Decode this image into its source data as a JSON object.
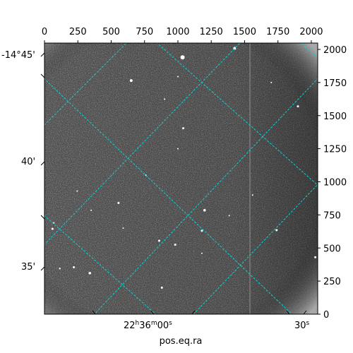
{
  "chart_data": {
    "type": "heatmap",
    "title": "",
    "xlabel": "pos.eq.ra",
    "ylabel": "",
    "pixel_axes": {
      "xlim": [
        0,
        2048
      ],
      "ylim": [
        0,
        2048
      ],
      "x_ticks": [
        "0",
        "250",
        "500",
        "750",
        "1000",
        "1250",
        "1500",
        "1750",
        "2000"
      ],
      "y_ticks": [
        "0",
        "250",
        "500",
        "750",
        "1000",
        "1250",
        "1500",
        "1750",
        "2000"
      ]
    },
    "world_axes": {
      "ra_ticks": [
        "22h36m00s",
        "30s"
      ],
      "dec_ticks": [
        "-14°45'",
        "40'",
        "35'"
      ]
    },
    "grid": true,
    "grid_color": "#00d8d8",
    "colormap": "gray",
    "stars": [
      {
        "x": 1035,
        "y": 1940,
        "r": 3
      },
      {
        "x": 1425,
        "y": 2008,
        "r": 2
      },
      {
        "x": 650,
        "y": 1765,
        "r": 2
      },
      {
        "x": 1000,
        "y": 1795,
        "r": 1
      },
      {
        "x": 1040,
        "y": 1405,
        "r": 1.5
      },
      {
        "x": 1900,
        "y": 1570,
        "r": 1.5
      },
      {
        "x": 900,
        "y": 1625,
        "r": 1
      },
      {
        "x": 1700,
        "y": 1750,
        "r": 1
      },
      {
        "x": 1200,
        "y": 785,
        "r": 1.8
      },
      {
        "x": 860,
        "y": 555,
        "r": 1.5
      },
      {
        "x": 980,
        "y": 525,
        "r": 1.5
      },
      {
        "x": 555,
        "y": 840,
        "r": 1.5
      },
      {
        "x": 350,
        "y": 785,
        "r": 1
      },
      {
        "x": 590,
        "y": 650,
        "r": 1
      },
      {
        "x": 1180,
        "y": 630,
        "r": 1.5
      },
      {
        "x": 60,
        "y": 645,
        "r": 1.5
      },
      {
        "x": 340,
        "y": 310,
        "r": 1.8
      },
      {
        "x": 220,
        "y": 355,
        "r": 1.5
      },
      {
        "x": 115,
        "y": 345,
        "r": 1.2
      },
      {
        "x": 880,
        "y": 200,
        "r": 1.5
      },
      {
        "x": 1740,
        "y": 635,
        "r": 1.5
      },
      {
        "x": 2030,
        "y": 430,
        "r": 1.5
      },
      {
        "x": 1180,
        "y": 460,
        "r": 1
      },
      {
        "x": 1560,
        "y": 900,
        "r": 1
      },
      {
        "x": 1385,
        "y": 745,
        "r": 1
      },
      {
        "x": 760,
        "y": 1050,
        "r": 1
      },
      {
        "x": 245,
        "y": 930,
        "r": 1
      },
      {
        "x": 70,
        "y": 690,
        "r": 1
      },
      {
        "x": 1000,
        "y": 1250,
        "r": 1
      }
    ]
  }
}
